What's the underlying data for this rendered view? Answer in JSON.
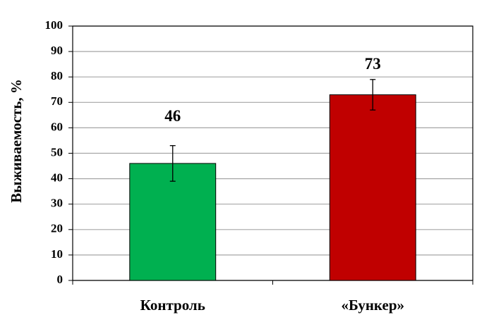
{
  "chart_data": {
    "type": "bar",
    "y_label": "Выживаемость, %",
    "categories": [
      "Контроль",
      "«Бункер»"
    ],
    "values": [
      46,
      73
    ],
    "errors": [
      7,
      6
    ],
    "colors": [
      "#00b050",
      "#c00000"
    ],
    "ylim": [
      0,
      100
    ],
    "yticks": [
      0,
      10,
      20,
      30,
      40,
      50,
      60,
      70,
      80,
      90,
      100
    ],
    "grid": true
  }
}
